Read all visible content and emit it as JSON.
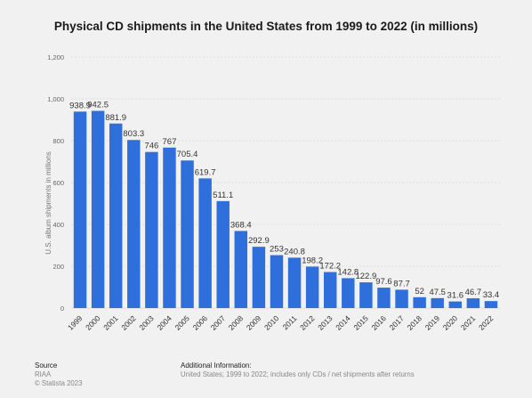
{
  "chart_data": {
    "type": "bar",
    "title": "Physical CD shipments in the United States from 1999 to 2022 (in millions)",
    "ylabel": "U.S. album shipments in millions",
    "xlabel": "",
    "ylim": [
      0,
      1200
    ],
    "yticks": [
      "0",
      "200",
      "400",
      "600",
      "800",
      "1,000",
      "1,200"
    ],
    "ytick_values": [
      0,
      200,
      400,
      600,
      800,
      1000,
      1200
    ],
    "categories": [
      "1999",
      "2000",
      "2001",
      "2002",
      "2003",
      "2004",
      "2005",
      "2006",
      "2007",
      "2008",
      "2009",
      "2010",
      "2011",
      "2012",
      "2013",
      "2014",
      "2015",
      "2016",
      "2017",
      "2018",
      "2019",
      "2020",
      "2021",
      "2022"
    ],
    "values": [
      938.9,
      942.5,
      881.9,
      803.3,
      746,
      767,
      705.4,
      619.7,
      511.1,
      368.4,
      292.9,
      253,
      240.8,
      198.2,
      172.2,
      142.8,
      122.9,
      97.6,
      87.7,
      52,
      47.5,
      31.6,
      46.7,
      33.4
    ],
    "data_labels": [
      "938.9",
      "942.5",
      "881.9",
      "803.3",
      "746",
      "767",
      "705.4",
      "619.7",
      "511.1",
      "368.4",
      "292.9",
      "253",
      "240.8",
      "198.2",
      "172.2",
      "142.8",
      "122.9",
      "97.6",
      "87.7",
      "52",
      "47.5",
      "31.6",
      "46.7",
      "33.4"
    ],
    "grid": true,
    "bar_color": "#2f6fdc"
  },
  "footer": {
    "source_heading": "Source",
    "source_name": "RIAA",
    "copyright": "© Statista 2023",
    "info_heading": "Additional Information:",
    "info_text": "United States; 1999 to 2022; includes only CDs / net shipments after returns"
  }
}
